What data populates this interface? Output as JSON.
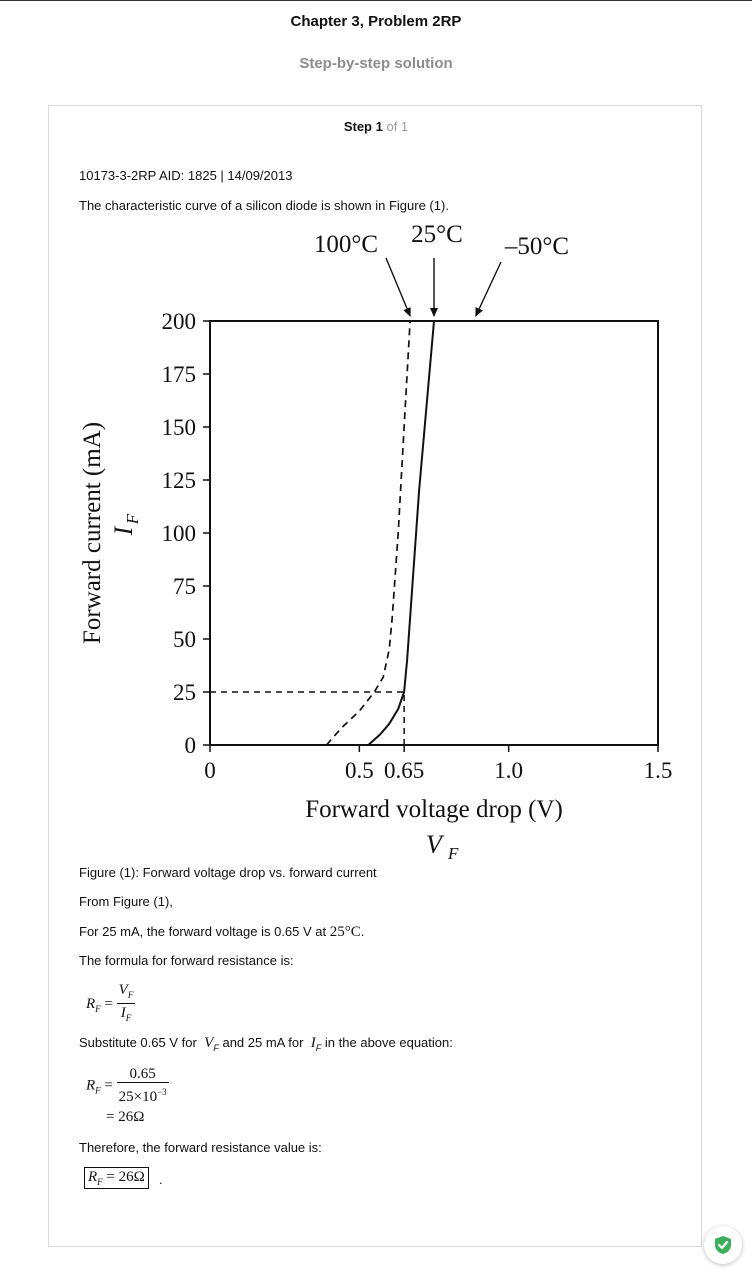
{
  "header": {
    "chapter_title": "Chapter 3, Problem 2RP",
    "subtitle": "Step-by-step solution"
  },
  "step": {
    "label": "Step 1",
    "of": "of 1"
  },
  "content": {
    "meta_line": "10173-3-2RP AID: 1825 | 14/09/2013",
    "intro": "The characteristic curve of a silicon diode is shown in Figure (1).",
    "figure_caption": "Figure (1): Forward voltage drop vs. forward current",
    "from_figure": "From Figure (1),",
    "forward_voltage_text": "For 25 mA, the forward voltage is 0.65 V at",
    "forward_voltage_temp": "25°C",
    "formula_intro": "The formula for forward resistance is:",
    "substitute_a": "Substitute 0.65 V for",
    "substitute_b": "and 25 mA for",
    "substitute_c": "in the above equation:",
    "eq_num": "0.65",
    "eq_den_base": "25×10",
    "eq_den_exp": "−3",
    "eq_result": "= 26Ω",
    "therefore": "Therefore, the forward resistance value is:",
    "final_answer": "= 26Ω"
  },
  "chart_data": {
    "type": "line",
    "title": "",
    "xlabel": "Forward voltage drop (V)",
    "xlabel_symbol": "V",
    "xlabel_symbol_sub": "F",
    "ylabel": "Forward current (mA)",
    "ylabel_symbol": "I",
    "ylabel_symbol_sub": "F",
    "xlim": [
      0,
      1.5
    ],
    "ylim": [
      0,
      200
    ],
    "x_ticks": [
      {
        "value": 0,
        "label": "0"
      },
      {
        "value": 0.5,
        "label": "0.5"
      },
      {
        "value": 0.65,
        "label": "0.65"
      },
      {
        "value": 1.0,
        "label": "1.0"
      },
      {
        "value": 1.5,
        "label": "1.5"
      }
    ],
    "y_ticks": [
      {
        "value": 0,
        "label": "0"
      },
      {
        "value": 25,
        "label": "25"
      },
      {
        "value": 50,
        "label": "50"
      },
      {
        "value": 75,
        "label": "75"
      },
      {
        "value": 100,
        "label": "100"
      },
      {
        "value": 125,
        "label": "125"
      },
      {
        "value": 150,
        "label": "150"
      },
      {
        "value": 175,
        "label": "175"
      },
      {
        "value": 200,
        "label": "200"
      }
    ],
    "series": [
      {
        "name": "25°C",
        "style": "solid",
        "x": [
          0.53,
          0.57,
          0.6,
          0.63,
          0.65,
          0.66,
          0.67,
          0.68,
          0.7,
          0.75
        ],
        "y": [
          0,
          5,
          10,
          17,
          25,
          40,
          60,
          80,
          120,
          200
        ]
      },
      {
        "name": "100°C",
        "style": "dashed",
        "x": [
          0.39,
          0.44,
          0.5,
          0.55,
          0.58,
          0.6,
          0.61,
          0.63,
          0.65,
          0.67
        ],
        "y": [
          0,
          8,
          16,
          25,
          32,
          45,
          60,
          100,
          150,
          200
        ]
      }
    ],
    "arrow_labels": [
      {
        "text": "100°C",
        "points_to_x": 0.67
      },
      {
        "text": "25°C",
        "points_to_x": 0.75
      },
      {
        "text": "–50°C",
        "points_to_x": 0.89
      }
    ],
    "reference_lines": [
      {
        "type": "horizontal",
        "y": 25,
        "x_to": 0.65,
        "style": "dashed"
      },
      {
        "type": "vertical",
        "x": 0.65,
        "y_to": 25,
        "style": "dashed"
      }
    ],
    "grid": false,
    "legend": "none"
  }
}
